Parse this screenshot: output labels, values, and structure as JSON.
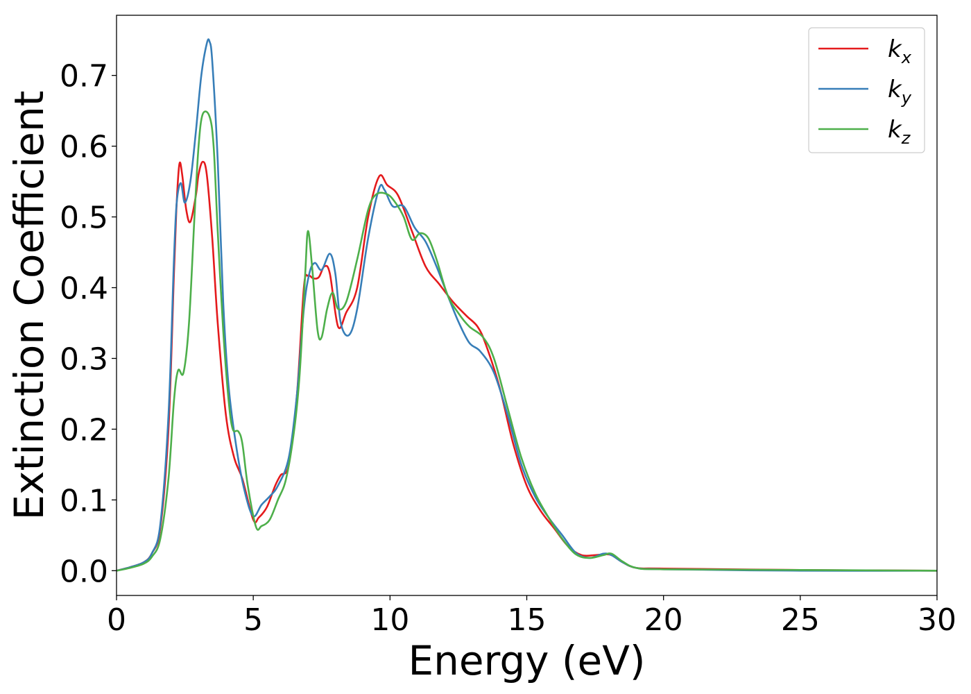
{
  "chart_data": {
    "type": "line",
    "xlabel": "Energy (eV)",
    "ylabel": "Extinction Coefficient",
    "xlim": [
      0,
      30
    ],
    "ylim": [
      -0.035,
      0.785
    ],
    "xticks": [
      0,
      5,
      10,
      15,
      20,
      25,
      30
    ],
    "xtick_labels": [
      "0",
      "5",
      "10",
      "15",
      "20",
      "25",
      "30"
    ],
    "yticks": [
      0.0,
      0.1,
      0.2,
      0.3,
      0.4,
      0.5,
      0.6,
      0.7
    ],
    "ytick_labels": [
      "0.0",
      "0.1",
      "0.2",
      "0.3",
      "0.4",
      "0.5",
      "0.6",
      "0.7"
    ],
    "grid": false,
    "legend_position": "top-right",
    "series": [
      {
        "name": "k_x",
        "legend_base": "k",
        "legend_sub": "x",
        "color": "#e41a1c",
        "points": [
          [
            0,
            0.0
          ],
          [
            0.5,
            0.005
          ],
          [
            1.0,
            0.012
          ],
          [
            1.3,
            0.025
          ],
          [
            1.6,
            0.06
          ],
          [
            1.9,
            0.2
          ],
          [
            2.1,
            0.42
          ],
          [
            2.2,
            0.52
          ],
          [
            2.3,
            0.575
          ],
          [
            2.4,
            0.56
          ],
          [
            2.55,
            0.51
          ],
          [
            2.7,
            0.493
          ],
          [
            2.9,
            0.53
          ],
          [
            3.0,
            0.56
          ],
          [
            3.15,
            0.578
          ],
          [
            3.3,
            0.56
          ],
          [
            3.5,
            0.47
          ],
          [
            3.7,
            0.35
          ],
          [
            4.0,
            0.22
          ],
          [
            4.3,
            0.16
          ],
          [
            4.6,
            0.13
          ],
          [
            5.0,
            0.072
          ],
          [
            5.2,
            0.075
          ],
          [
            5.5,
            0.09
          ],
          [
            5.8,
            0.12
          ],
          [
            6.0,
            0.135
          ],
          [
            6.3,
            0.15
          ],
          [
            6.6,
            0.25
          ],
          [
            6.85,
            0.4
          ],
          [
            7.0,
            0.417
          ],
          [
            7.2,
            0.413
          ],
          [
            7.4,
            0.415
          ],
          [
            7.6,
            0.43
          ],
          [
            7.8,
            0.42
          ],
          [
            8.1,
            0.345
          ],
          [
            8.4,
            0.365
          ],
          [
            8.8,
            0.4
          ],
          [
            9.2,
            0.5
          ],
          [
            9.6,
            0.557
          ],
          [
            9.9,
            0.545
          ],
          [
            10.3,
            0.53
          ],
          [
            10.8,
            0.48
          ],
          [
            11.3,
            0.43
          ],
          [
            11.8,
            0.405
          ],
          [
            12.3,
            0.38
          ],
          [
            12.8,
            0.36
          ],
          [
            13.2,
            0.345
          ],
          [
            13.5,
            0.32
          ],
          [
            14.0,
            0.26
          ],
          [
            14.5,
            0.18
          ],
          [
            15.0,
            0.12
          ],
          [
            15.5,
            0.085
          ],
          [
            16.0,
            0.06
          ],
          [
            16.5,
            0.035
          ],
          [
            17.0,
            0.022
          ],
          [
            17.5,
            0.022
          ],
          [
            17.8,
            0.023
          ],
          [
            18.1,
            0.022
          ],
          [
            18.5,
            0.012
          ],
          [
            19.0,
            0.004
          ],
          [
            20.0,
            0.003
          ],
          [
            25.0,
            0.001
          ],
          [
            30.0,
            0.0
          ]
        ]
      },
      {
        "name": "k_y",
        "legend_base": "k",
        "legend_sub": "y",
        "color": "#377eb8",
        "points": [
          [
            0,
            0.0
          ],
          [
            0.5,
            0.005
          ],
          [
            1.0,
            0.012
          ],
          [
            1.3,
            0.025
          ],
          [
            1.6,
            0.065
          ],
          [
            1.9,
            0.22
          ],
          [
            2.1,
            0.44
          ],
          [
            2.2,
            0.52
          ],
          [
            2.35,
            0.548
          ],
          [
            2.5,
            0.52
          ],
          [
            2.7,
            0.55
          ],
          [
            2.9,
            0.62
          ],
          [
            3.1,
            0.7
          ],
          [
            3.3,
            0.745
          ],
          [
            3.4,
            0.748
          ],
          [
            3.5,
            0.72
          ],
          [
            3.7,
            0.58
          ],
          [
            3.9,
            0.38
          ],
          [
            4.1,
            0.26
          ],
          [
            4.4,
            0.17
          ],
          [
            4.7,
            0.11
          ],
          [
            5.0,
            0.077
          ],
          [
            5.3,
            0.093
          ],
          [
            5.6,
            0.105
          ],
          [
            5.9,
            0.12
          ],
          [
            6.3,
            0.16
          ],
          [
            6.6,
            0.25
          ],
          [
            6.85,
            0.37
          ],
          [
            7.05,
            0.42
          ],
          [
            7.25,
            0.435
          ],
          [
            7.5,
            0.425
          ],
          [
            7.8,
            0.448
          ],
          [
            8.0,
            0.42
          ],
          [
            8.2,
            0.35
          ],
          [
            8.5,
            0.333
          ],
          [
            8.8,
            0.37
          ],
          [
            9.2,
            0.47
          ],
          [
            9.6,
            0.54
          ],
          [
            9.8,
            0.538
          ],
          [
            10.1,
            0.515
          ],
          [
            10.5,
            0.515
          ],
          [
            10.9,
            0.485
          ],
          [
            11.3,
            0.465
          ],
          [
            11.7,
            0.43
          ],
          [
            12.1,
            0.39
          ],
          [
            12.5,
            0.352
          ],
          [
            12.9,
            0.322
          ],
          [
            13.3,
            0.31
          ],
          [
            13.8,
            0.28
          ],
          [
            14.3,
            0.22
          ],
          [
            14.8,
            0.15
          ],
          [
            15.3,
            0.105
          ],
          [
            15.8,
            0.075
          ],
          [
            16.3,
            0.05
          ],
          [
            16.8,
            0.025
          ],
          [
            17.3,
            0.018
          ],
          [
            17.8,
            0.024
          ],
          [
            18.1,
            0.022
          ],
          [
            18.5,
            0.012
          ],
          [
            19.0,
            0.004
          ],
          [
            20.0,
            0.002
          ],
          [
            25.0,
            0.0
          ],
          [
            30.0,
            0.0
          ]
        ]
      },
      {
        "name": "k_z",
        "legend_base": "k",
        "legend_sub": "z",
        "color": "#4daf4a",
        "points": [
          [
            0,
            0.0
          ],
          [
            0.5,
            0.004
          ],
          [
            1.0,
            0.01
          ],
          [
            1.3,
            0.02
          ],
          [
            1.6,
            0.045
          ],
          [
            1.9,
            0.13
          ],
          [
            2.1,
            0.24
          ],
          [
            2.25,
            0.283
          ],
          [
            2.45,
            0.28
          ],
          [
            2.65,
            0.35
          ],
          [
            2.85,
            0.5
          ],
          [
            3.0,
            0.6
          ],
          [
            3.15,
            0.645
          ],
          [
            3.4,
            0.642
          ],
          [
            3.55,
            0.6
          ],
          [
            3.7,
            0.48
          ],
          [
            3.9,
            0.34
          ],
          [
            4.1,
            0.24
          ],
          [
            4.25,
            0.2
          ],
          [
            4.45,
            0.197
          ],
          [
            4.6,
            0.18
          ],
          [
            4.8,
            0.12
          ],
          [
            5.1,
            0.062
          ],
          [
            5.3,
            0.063
          ],
          [
            5.6,
            0.072
          ],
          [
            5.9,
            0.1
          ],
          [
            6.2,
            0.13
          ],
          [
            6.5,
            0.2
          ],
          [
            6.7,
            0.28
          ],
          [
            6.9,
            0.42
          ],
          [
            7.0,
            0.48
          ],
          [
            7.15,
            0.43
          ],
          [
            7.35,
            0.34
          ],
          [
            7.5,
            0.33
          ],
          [
            7.7,
            0.37
          ],
          [
            7.9,
            0.393
          ],
          [
            8.1,
            0.37
          ],
          [
            8.4,
            0.38
          ],
          [
            8.8,
            0.44
          ],
          [
            9.2,
            0.51
          ],
          [
            9.5,
            0.532
          ],
          [
            9.9,
            0.532
          ],
          [
            10.2,
            0.52
          ],
          [
            10.5,
            0.5
          ],
          [
            10.8,
            0.468
          ],
          [
            11.1,
            0.477
          ],
          [
            11.4,
            0.47
          ],
          [
            11.7,
            0.44
          ],
          [
            12.1,
            0.39
          ],
          [
            12.5,
            0.364
          ],
          [
            12.9,
            0.345
          ],
          [
            13.4,
            0.33
          ],
          [
            13.8,
            0.3
          ],
          [
            14.3,
            0.23
          ],
          [
            14.8,
            0.16
          ],
          [
            15.3,
            0.11
          ],
          [
            15.8,
            0.075
          ],
          [
            16.3,
            0.045
          ],
          [
            16.8,
            0.023
          ],
          [
            17.3,
            0.018
          ],
          [
            17.8,
            0.022
          ],
          [
            18.1,
            0.024
          ],
          [
            18.5,
            0.013
          ],
          [
            19.0,
            0.004
          ],
          [
            20.0,
            0.002
          ],
          [
            25.0,
            0.001
          ],
          [
            30.0,
            0.0
          ]
        ]
      }
    ]
  }
}
